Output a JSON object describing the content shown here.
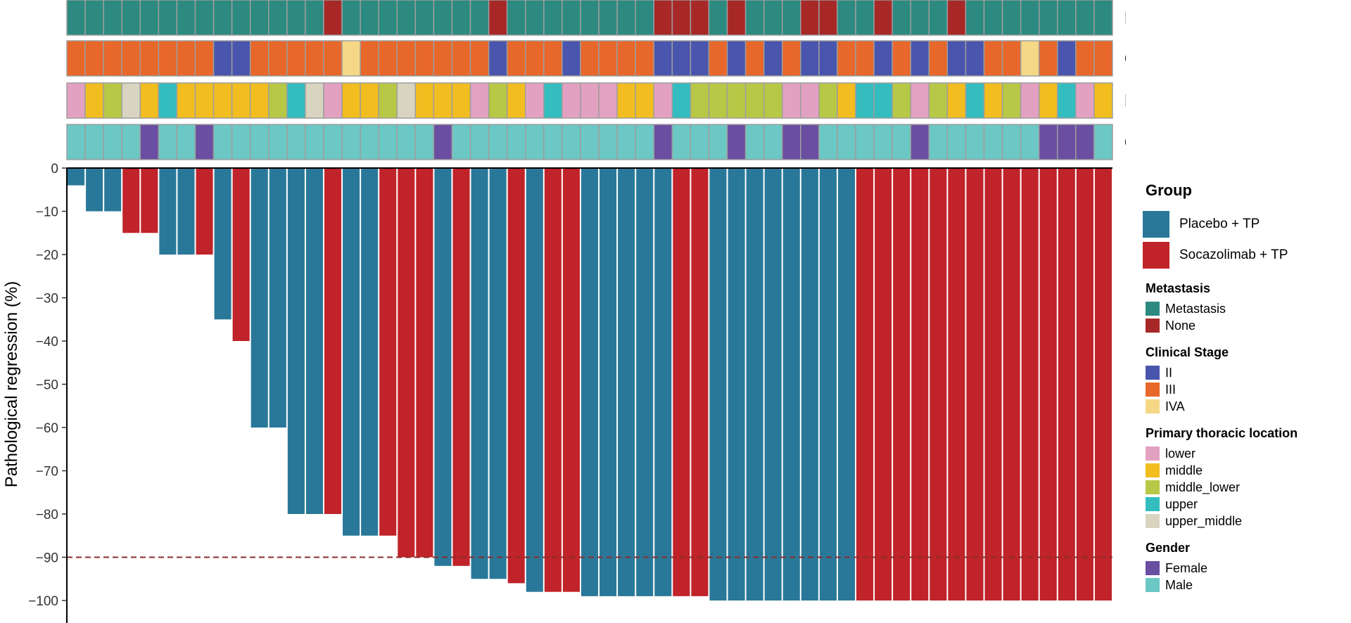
{
  "chart_data": {
    "type": "bar",
    "ylabel": "Pathological regression (%)",
    "ylim": [
      -100,
      0
    ],
    "yticks": [
      0,
      -10,
      -20,
      -30,
      -40,
      -50,
      -60,
      -70,
      -80,
      -90,
      -100
    ],
    "reference_line": -90,
    "groups": [
      "Placebo + TP",
      "Socazolimab + TP"
    ],
    "group_colors": {
      "Placebo + TP": "#2a7899",
      "Socazolimab + TP": "#c0232a"
    },
    "patients": [
      {
        "value": -4,
        "group": "Placebo + TP",
        "metastasis": "Metastasis",
        "stage": "III",
        "location": "lower",
        "gender": "Male"
      },
      {
        "value": -10,
        "group": "Placebo + TP",
        "metastasis": "Metastasis",
        "stage": "III",
        "location": "middle",
        "gender": "Male"
      },
      {
        "value": -10,
        "group": "Placebo + TP",
        "metastasis": "Metastasis",
        "stage": "III",
        "location": "middle_lower",
        "gender": "Male"
      },
      {
        "value": -15,
        "group": "Socazolimab + TP",
        "metastasis": "Metastasis",
        "stage": "III",
        "location": "upper_middle",
        "gender": "Male"
      },
      {
        "value": -15,
        "group": "Socazolimab + TP",
        "metastasis": "Metastasis",
        "stage": "III",
        "location": "middle",
        "gender": "Female"
      },
      {
        "value": -20,
        "group": "Placebo + TP",
        "metastasis": "Metastasis",
        "stage": "III",
        "location": "upper",
        "gender": "Male"
      },
      {
        "value": -20,
        "group": "Placebo + TP",
        "metastasis": "Metastasis",
        "stage": "III",
        "location": "middle",
        "gender": "Male"
      },
      {
        "value": -20,
        "group": "Socazolimab + TP",
        "metastasis": "Metastasis",
        "stage": "III",
        "location": "middle",
        "gender": "Female"
      },
      {
        "value": -35,
        "group": "Placebo + TP",
        "metastasis": "Metastasis",
        "stage": "II",
        "location": "middle",
        "gender": "Male"
      },
      {
        "value": -40,
        "group": "Socazolimab + TP",
        "metastasis": "Metastasis",
        "stage": "II",
        "location": "middle",
        "gender": "Male"
      },
      {
        "value": -60,
        "group": "Placebo + TP",
        "metastasis": "Metastasis",
        "stage": "III",
        "location": "middle",
        "gender": "Male"
      },
      {
        "value": -60,
        "group": "Placebo + TP",
        "metastasis": "Metastasis",
        "stage": "III",
        "location": "middle_lower",
        "gender": "Male"
      },
      {
        "value": -80,
        "group": "Placebo + TP",
        "metastasis": "Metastasis",
        "stage": "III",
        "location": "upper",
        "gender": "Male"
      },
      {
        "value": -80,
        "group": "Placebo + TP",
        "metastasis": "Metastasis",
        "stage": "III",
        "location": "upper_middle",
        "gender": "Male"
      },
      {
        "value": -80,
        "group": "Socazolimab + TP",
        "metastasis": "None",
        "stage": "III",
        "location": "lower",
        "gender": "Male"
      },
      {
        "value": -85,
        "group": "Placebo + TP",
        "metastasis": "Metastasis",
        "stage": "IVA",
        "location": "middle",
        "gender": "Male"
      },
      {
        "value": -85,
        "group": "Placebo + TP",
        "metastasis": "Metastasis",
        "stage": "III",
        "location": "middle",
        "gender": "Male"
      },
      {
        "value": -85,
        "group": "Socazolimab + TP",
        "metastasis": "Metastasis",
        "stage": "III",
        "location": "middle_lower",
        "gender": "Male"
      },
      {
        "value": -90,
        "group": "Socazolimab + TP",
        "metastasis": "Metastasis",
        "stage": "III",
        "location": "upper_middle",
        "gender": "Male"
      },
      {
        "value": -90,
        "group": "Socazolimab + TP",
        "metastasis": "Metastasis",
        "stage": "III",
        "location": "middle",
        "gender": "Male"
      },
      {
        "value": -92,
        "group": "Placebo + TP",
        "metastasis": "Metastasis",
        "stage": "III",
        "location": "middle",
        "gender": "Female"
      },
      {
        "value": -92,
        "group": "Socazolimab + TP",
        "metastasis": "Metastasis",
        "stage": "III",
        "location": "middle",
        "gender": "Male"
      },
      {
        "value": -95,
        "group": "Placebo + TP",
        "metastasis": "Metastasis",
        "stage": "III",
        "location": "lower",
        "gender": "Male"
      },
      {
        "value": -95,
        "group": "Placebo + TP",
        "metastasis": "None",
        "stage": "II",
        "location": "middle_lower",
        "gender": "Male"
      },
      {
        "value": -96,
        "group": "Socazolimab + TP",
        "metastasis": "Metastasis",
        "stage": "III",
        "location": "middle",
        "gender": "Male"
      },
      {
        "value": -98,
        "group": "Placebo + TP",
        "metastasis": "Metastasis",
        "stage": "III",
        "location": "lower",
        "gender": "Male"
      },
      {
        "value": -98,
        "group": "Socazolimab + TP",
        "metastasis": "Metastasis",
        "stage": "III",
        "location": "upper",
        "gender": "Male"
      },
      {
        "value": -98,
        "group": "Socazolimab + TP",
        "metastasis": "Metastasis",
        "stage": "II",
        "location": "lower",
        "gender": "Male"
      },
      {
        "value": -99,
        "group": "Placebo + TP",
        "metastasis": "Metastasis",
        "stage": "III",
        "location": "lower",
        "gender": "Male"
      },
      {
        "value": -99,
        "group": "Placebo + TP",
        "metastasis": "Metastasis",
        "stage": "III",
        "location": "lower",
        "gender": "Male"
      },
      {
        "value": -99,
        "group": "Placebo + TP",
        "metastasis": "Metastasis",
        "stage": "III",
        "location": "middle",
        "gender": "Male"
      },
      {
        "value": -99,
        "group": "Placebo + TP",
        "metastasis": "Metastasis",
        "stage": "III",
        "location": "middle",
        "gender": "Male"
      },
      {
        "value": -99,
        "group": "Placebo + TP",
        "metastasis": "None",
        "stage": "II",
        "location": "lower",
        "gender": "Female"
      },
      {
        "value": -99,
        "group": "Socazolimab + TP",
        "metastasis": "None",
        "stage": "II",
        "location": "upper",
        "gender": "Male"
      },
      {
        "value": -99,
        "group": "Socazolimab + TP",
        "metastasis": "None",
        "stage": "II",
        "location": "middle_lower",
        "gender": "Male"
      },
      {
        "value": -100,
        "group": "Placebo + TP",
        "metastasis": "Metastasis",
        "stage": "III",
        "location": "middle_lower",
        "gender": "Male"
      },
      {
        "value": -100,
        "group": "Placebo + TP",
        "metastasis": "None",
        "stage": "II",
        "location": "middle_lower",
        "gender": "Female"
      },
      {
        "value": -100,
        "group": "Placebo + TP",
        "metastasis": "Metastasis",
        "stage": "III",
        "location": "middle_lower",
        "gender": "Male"
      },
      {
        "value": -100,
        "group": "Placebo + TP",
        "metastasis": "Metastasis",
        "stage": "II",
        "location": "middle_lower",
        "gender": "Male"
      },
      {
        "value": -100,
        "group": "Placebo + TP",
        "metastasis": "Metastasis",
        "stage": "III",
        "location": "lower",
        "gender": "Female"
      },
      {
        "value": -100,
        "group": "Placebo + TP",
        "metastasis": "None",
        "stage": "II",
        "location": "lower",
        "gender": "Female"
      },
      {
        "value": -100,
        "group": "Placebo + TP",
        "metastasis": "None",
        "stage": "II",
        "location": "middle_lower",
        "gender": "Male"
      },
      {
        "value": -100,
        "group": "Placebo + TP",
        "metastasis": "Metastasis",
        "stage": "III",
        "location": "middle",
        "gender": "Male"
      },
      {
        "value": -100,
        "group": "Socazolimab + TP",
        "metastasis": "Metastasis",
        "stage": "III",
        "location": "upper",
        "gender": "Male"
      },
      {
        "value": -100,
        "group": "Socazolimab + TP",
        "metastasis": "None",
        "stage": "II",
        "location": "upper",
        "gender": "Male"
      },
      {
        "value": -100,
        "group": "Socazolimab + TP",
        "metastasis": "Metastasis",
        "stage": "III",
        "location": "middle_lower",
        "gender": "Male"
      },
      {
        "value": -100,
        "group": "Socazolimab + TP",
        "metastasis": "Metastasis",
        "stage": "II",
        "location": "lower",
        "gender": "Female"
      },
      {
        "value": -100,
        "group": "Socazolimab + TP",
        "metastasis": "Metastasis",
        "stage": "III",
        "location": "middle_lower",
        "gender": "Male"
      },
      {
        "value": -100,
        "group": "Socazolimab + TP",
        "metastasis": "None",
        "stage": "II",
        "location": "middle",
        "gender": "Male"
      },
      {
        "value": -100,
        "group": "Socazolimab + TP",
        "metastasis": "Metastasis",
        "stage": "II",
        "location": "upper",
        "gender": "Male"
      },
      {
        "value": -100,
        "group": "Socazolimab + TP",
        "metastasis": "Metastasis",
        "stage": "III",
        "location": "middle",
        "gender": "Male"
      },
      {
        "value": -100,
        "group": "Socazolimab + TP",
        "metastasis": "Metastasis",
        "stage": "III",
        "location": "middle_lower",
        "gender": "Male"
      },
      {
        "value": -100,
        "group": "Socazolimab + TP",
        "metastasis": "Metastasis",
        "stage": "IVA",
        "location": "lower",
        "gender": "Male"
      },
      {
        "value": -100,
        "group": "Socazolimab + TP",
        "metastasis": "Metastasis",
        "stage": "III",
        "location": "middle",
        "gender": "Female"
      },
      {
        "value": -100,
        "group": "Socazolimab + TP",
        "metastasis": "Metastasis",
        "stage": "II",
        "location": "upper",
        "gender": "Female"
      },
      {
        "value": -100,
        "group": "Socazolimab + TP",
        "metastasis": "Metastasis",
        "stage": "III",
        "location": "lower",
        "gender": "Female"
      },
      {
        "value": -100,
        "group": "Socazolimab + TP",
        "metastasis": "Metastasis",
        "stage": "III",
        "location": "middle",
        "gender": "Male"
      }
    ]
  },
  "annotation_tracks": [
    {
      "key": "metastasis",
      "label": "Metastasis"
    },
    {
      "key": "stage",
      "label": "Clinical Stage"
    },
    {
      "key": "location",
      "label": "Primary thoracic location"
    },
    {
      "key": "gender",
      "label": "Gender"
    }
  ],
  "legend": {
    "group_title": "Group",
    "groups": [
      {
        "label": "Placebo + TP",
        "color": "#2a7899"
      },
      {
        "label": "Socazolimab + TP",
        "color": "#c0232a"
      }
    ],
    "sections": [
      {
        "title": "Metastasis",
        "items": [
          {
            "label": "Metastasis",
            "color": "#2c8a80"
          },
          {
            "label": "None",
            "color": "#a82828"
          }
        ]
      },
      {
        "title": "Clinical Stage",
        "items": [
          {
            "label": "II",
            "color": "#4a55ad"
          },
          {
            "label": "III",
            "color": "#e8672a"
          },
          {
            "label": "IVA",
            "color": "#f5d886"
          }
        ]
      },
      {
        "title": "Primary thoracic location",
        "items": [
          {
            "label": "lower",
            "color": "#e3a1c2"
          },
          {
            "label": "middle",
            "color": "#f2bd1e"
          },
          {
            "label": "middle_lower",
            "color": "#b6c845"
          },
          {
            "label": "upper",
            "color": "#33bdbf"
          },
          {
            "label": "upper_middle",
            "color": "#d8d4c0"
          }
        ]
      },
      {
        "title": "Gender",
        "items": [
          {
            "label": "Female",
            "color": "#6a4ea1"
          },
          {
            "label": "Male",
            "color": "#6bc8c4"
          }
        ]
      }
    ]
  },
  "colors": {
    "reference_line": "#8a2c2c",
    "tile_border": "#9e9e9e",
    "axis": "#000000"
  }
}
